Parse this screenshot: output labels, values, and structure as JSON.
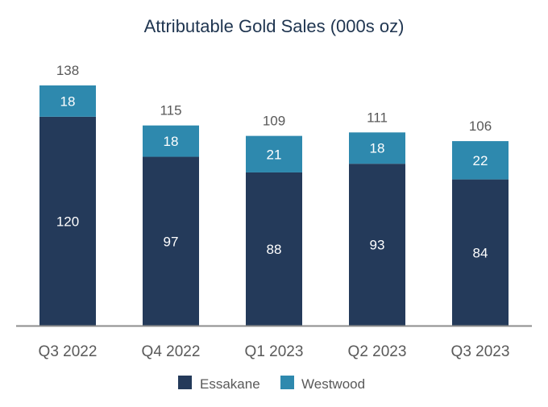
{
  "chart_data": {
    "type": "stacked-bar",
    "title": "Attributable Gold Sales (000s oz)",
    "xlabel": "",
    "ylabel": "",
    "categories": [
      "Q3 2022",
      "Q4 2022",
      "Q1 2023",
      "Q2 2023",
      "Q3 2023"
    ],
    "series": [
      {
        "name": "Essakane",
        "values": [
          120,
          97,
          88,
          93,
          84
        ],
        "color": "#243a5a"
      },
      {
        "name": "Westwood",
        "values": [
          18,
          18,
          21,
          18,
          22
        ],
        "color": "#2e89ae"
      }
    ],
    "totals": [
      138,
      115,
      109,
      111,
      106
    ],
    "ylim": [
      0,
      138
    ],
    "grid": false,
    "legend": "bottom"
  }
}
